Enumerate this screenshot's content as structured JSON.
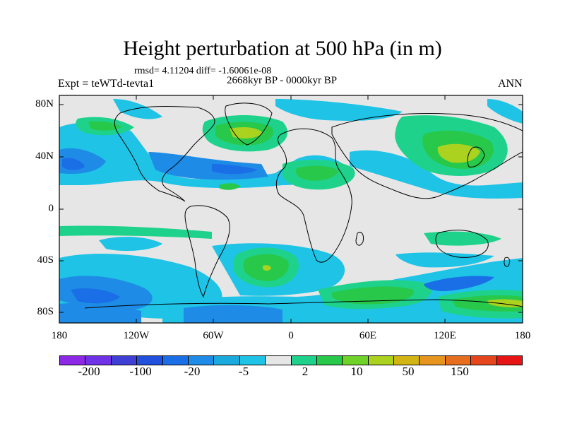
{
  "title": "Height perturbation at 500 hPa (in m)",
  "stats": "rmsd= 4.11204 diff= -1.60061e-08",
  "period": "2668kyr BP - 0000kyr BP",
  "experiment": "Expt = teWTd-tevta1",
  "season": "ANN",
  "lat_labels": [
    "80N",
    "40N",
    "0",
    "40S",
    "80S"
  ],
  "lon_labels": [
    "180",
    "120W",
    "60W",
    "0",
    "60E",
    "120E",
    "180"
  ],
  "colorbar": {
    "colors": [
      "#8c28e6",
      "#6f32e6",
      "#3f3fd6",
      "#2050dc",
      "#1a6ee6",
      "#1e8ce6",
      "#1aaade",
      "#1ec3e6",
      "#e6e6e6",
      "#1ed28c",
      "#28c84b",
      "#6ed228",
      "#aad21e",
      "#d2b414",
      "#e6961e",
      "#e66e1e",
      "#e6461e",
      "#e61414"
    ],
    "labels": [
      "-200",
      "-100",
      "-20",
      "-5",
      "2",
      "10",
      "50",
      "150"
    ]
  },
  "map_colors": {
    "ocean_bg": "#e6e6e6",
    "neg_weak": "#1ec3e6",
    "neg_mid": "#1e8ce6",
    "neg_strong": "#1a6ee6",
    "pos_weak": "#1ed28c",
    "pos_mid": "#28c84b",
    "pos_strong": "#aad21e",
    "pos_peak": "#d2b414"
  }
}
